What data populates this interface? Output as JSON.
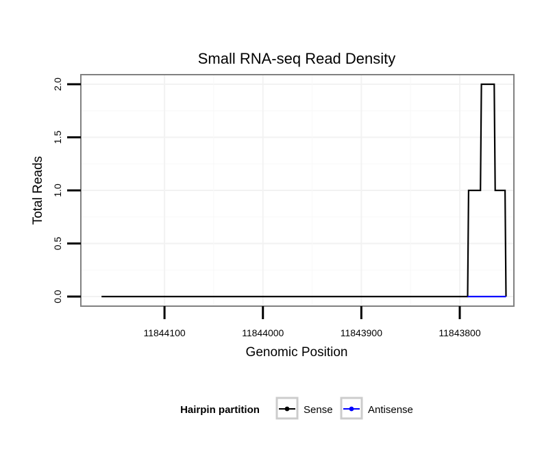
{
  "chart_data": {
    "type": "line",
    "title": "Small RNA-seq Read Density",
    "xlabel": "Genomic Position",
    "ylabel": "Total Reads",
    "x_reversed": true,
    "xlim": [
      11844185,
      11843745
    ],
    "ylim": [
      -0.09,
      2.09
    ],
    "x_ticks": [
      11844100,
      11844000,
      11843900,
      11843800
    ],
    "x_tick_labels": [
      "11844100",
      "11844000",
      "11843900",
      "11843800"
    ],
    "y_ticks": [
      0.0,
      0.5,
      1.0,
      1.5,
      2.0
    ],
    "y_tick_labels": [
      "0.0",
      "0.5",
      "1.0",
      "1.5",
      "2.0"
    ],
    "grid": true,
    "legend_position": "bottom",
    "legend": {
      "title": "Hairpin partition",
      "entries": [
        "Sense",
        "Antisense"
      ]
    },
    "series": [
      {
        "name": "Sense",
        "color": "#000000",
        "x": [
          11844164,
          11843792,
          11843791,
          11843779,
          11843778,
          11843765,
          11843764,
          11843754,
          11843753
        ],
        "y": [
          0,
          0,
          1,
          1,
          2,
          2,
          1,
          1,
          0
        ]
      },
      {
        "name": "Antisense",
        "color": "#0000ff",
        "x": [
          11843792,
          11843753
        ],
        "y": [
          0,
          0
        ]
      }
    ]
  }
}
